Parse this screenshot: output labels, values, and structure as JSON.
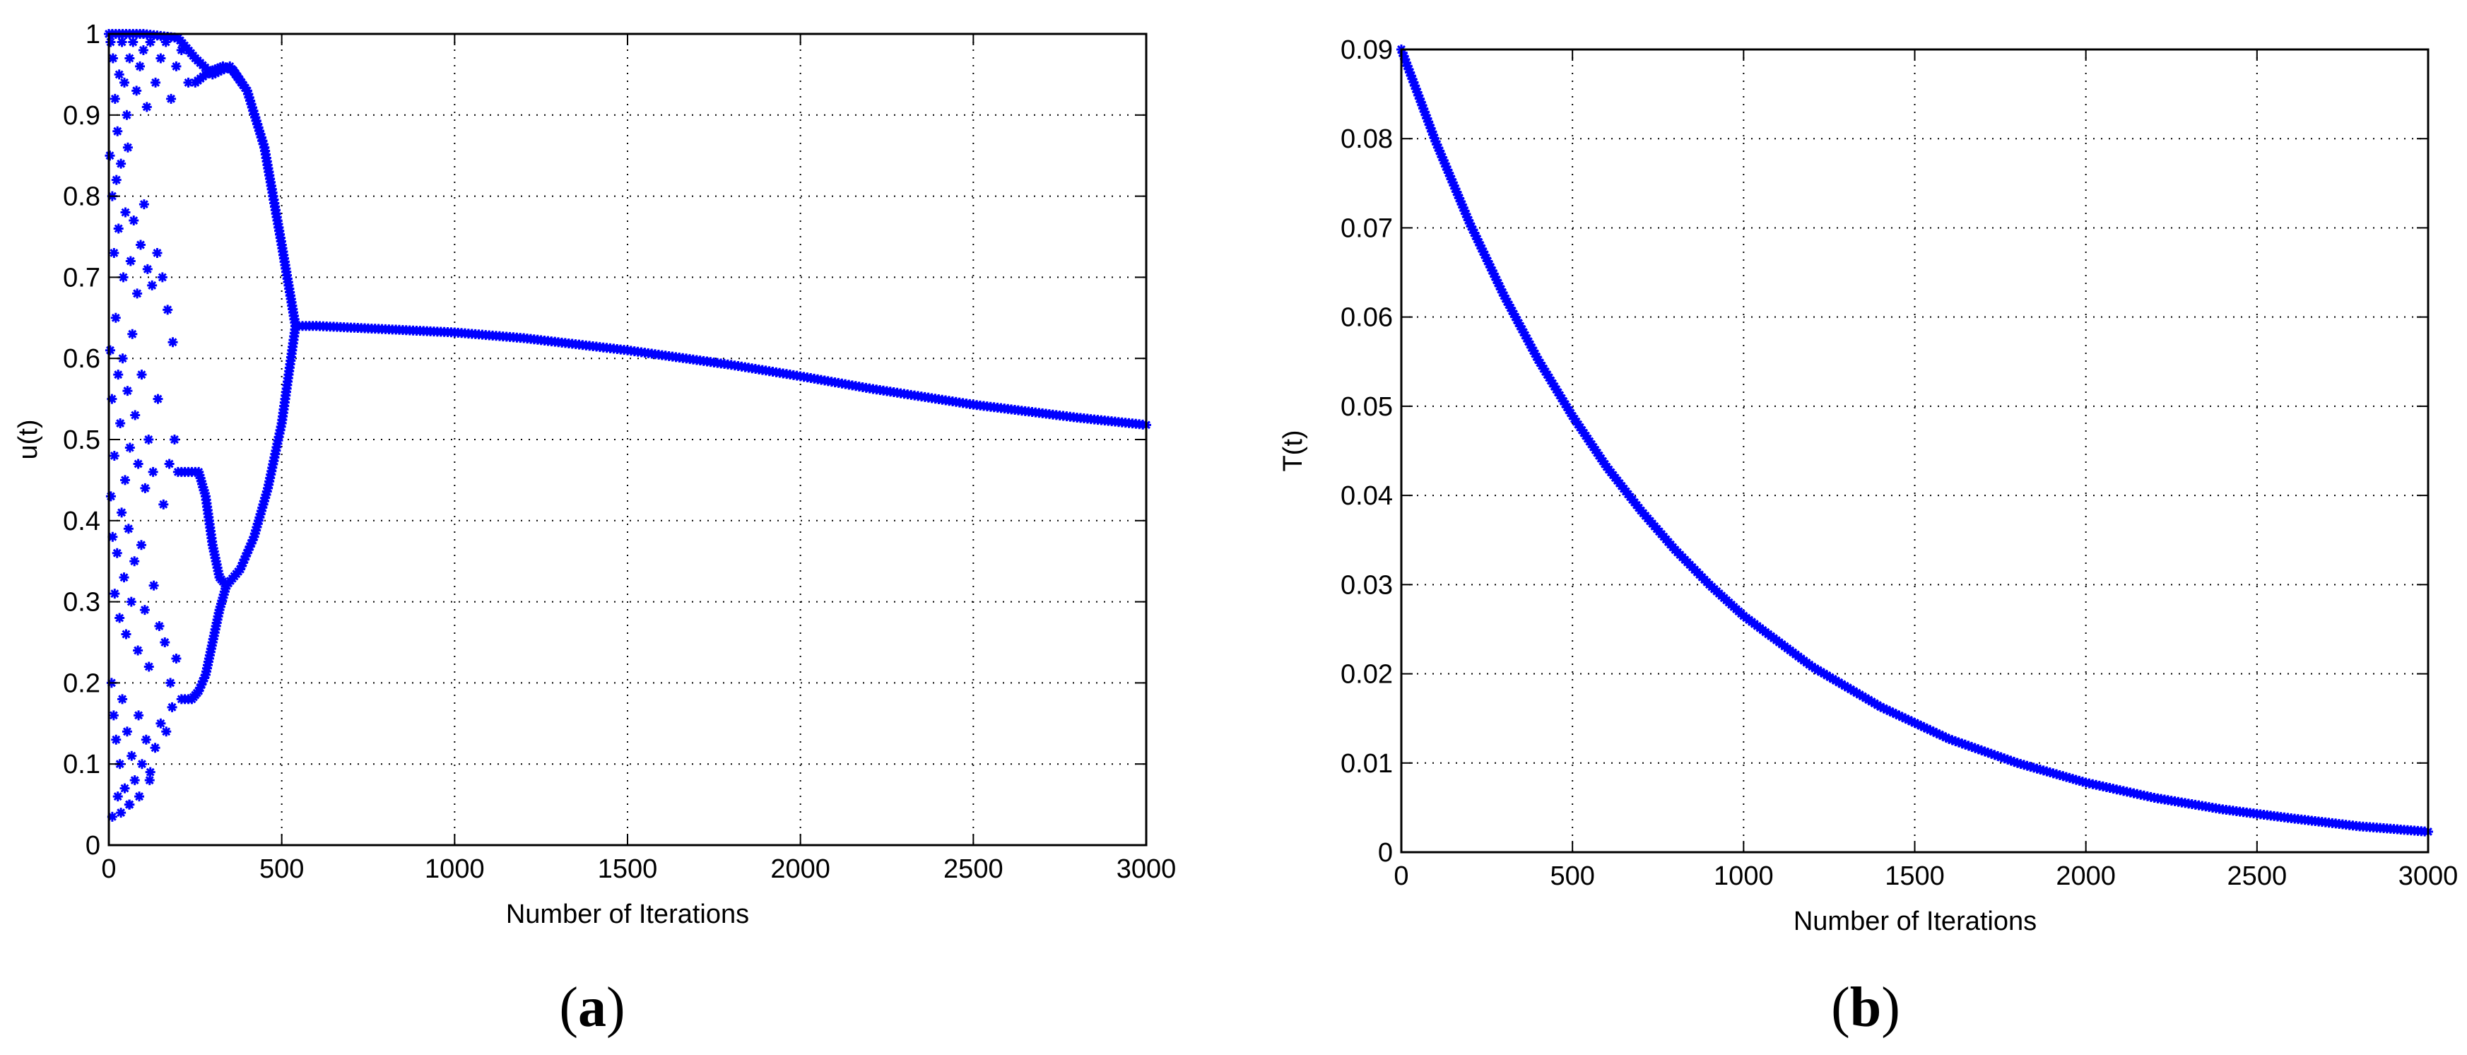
{
  "chart_data": [
    {
      "type": "scatter",
      "caption": {
        "open": "(",
        "letter": "a",
        "close": ")"
      },
      "title": "",
      "xlabel": "Number of Iterations",
      "ylabel": "u(t)",
      "xlim": [
        0,
        3000
      ],
      "ylim": [
        0,
        1
      ],
      "xticks": [
        0,
        500,
        1000,
        1500,
        2000,
        2500,
        3000
      ],
      "yticks": [
        0,
        0.1,
        0.2,
        0.3,
        0.4,
        0.5,
        0.6,
        0.7,
        0.8,
        0.9,
        1
      ],
      "grid": true,
      "marker": "*",
      "color": "#0000ff",
      "series": [
        {
          "x": [
            0,
            100,
            200,
            250,
            300,
            350,
            400,
            450,
            500,
            540,
            600,
            800,
            1000,
            1200,
            1500,
            1800,
            2000,
            2200,
            2500,
            2800,
            3000
          ],
          "y": [
            1.0,
            1.0,
            0.995,
            0.97,
            0.95,
            0.96,
            0.93,
            0.86,
            0.74,
            0.64,
            0.64,
            0.636,
            0.632,
            0.625,
            0.61,
            0.592,
            0.578,
            0.563,
            0.543,
            0.527,
            0.518
          ]
        },
        {
          "x": [
            250,
            280,
            300,
            330,
            360,
            400,
            450,
            500,
            540
          ],
          "y": [
            0.94,
            0.95,
            0.955,
            0.96,
            0.955,
            0.93,
            0.86,
            0.74,
            0.64
          ]
        },
        {
          "x": [
            200,
            230,
            260,
            280,
            300,
            320,
            340,
            380,
            420,
            460,
            500,
            540
          ],
          "y": [
            0.46,
            0.46,
            0.46,
            0.43,
            0.37,
            0.33,
            0.32,
            0.34,
            0.38,
            0.44,
            0.52,
            0.64
          ]
        },
        {
          "x": [
            210,
            240,
            260,
            280,
            300,
            320,
            340
          ],
          "y": [
            0.18,
            0.18,
            0.19,
            0.21,
            0.25,
            0.29,
            0.32
          ]
        }
      ],
      "scatter": [
        [
          5,
          0.99
        ],
        [
          12,
          0.97
        ],
        [
          18,
          0.92
        ],
        [
          25,
          0.88
        ],
        [
          30,
          0.95
        ],
        [
          38,
          0.99
        ],
        [
          45,
          0.94
        ],
        [
          52,
          0.9
        ],
        [
          60,
          0.97
        ],
        [
          70,
          0.99
        ],
        [
          80,
          0.93
        ],
        [
          90,
          0.96
        ],
        [
          100,
          0.98
        ],
        [
          110,
          0.91
        ],
        [
          120,
          0.99
        ],
        [
          135,
          0.94
        ],
        [
          150,
          0.97
        ],
        [
          165,
          0.99
        ],
        [
          180,
          0.92
        ],
        [
          195,
          0.96
        ],
        [
          210,
          0.98
        ],
        [
          230,
          0.94
        ],
        [
          3,
          0.85
        ],
        [
          10,
          0.8
        ],
        [
          15,
          0.73
        ],
        [
          22,
          0.82
        ],
        [
          28,
          0.76
        ],
        [
          35,
          0.84
        ],
        [
          42,
          0.7
        ],
        [
          48,
          0.78
        ],
        [
          55,
          0.86
        ],
        [
          63,
          0.72
        ],
        [
          72,
          0.77
        ],
        [
          82,
          0.68
        ],
        [
          92,
          0.74
        ],
        [
          102,
          0.79
        ],
        [
          112,
          0.71
        ],
        [
          125,
          0.69
        ],
        [
          140,
          0.73
        ],
        [
          155,
          0.7
        ],
        [
          170,
          0.66
        ],
        [
          185,
          0.62
        ],
        [
          4,
          0.61
        ],
        [
          9,
          0.55
        ],
        [
          16,
          0.48
        ],
        [
          20,
          0.65
        ],
        [
          27,
          0.58
        ],
        [
          33,
          0.52
        ],
        [
          40,
          0.6
        ],
        [
          47,
          0.45
        ],
        [
          54,
          0.56
        ],
        [
          61,
          0.49
        ],
        [
          68,
          0.63
        ],
        [
          76,
          0.53
        ],
        [
          85,
          0.47
        ],
        [
          95,
          0.58
        ],
        [
          105,
          0.44
        ],
        [
          115,
          0.5
        ],
        [
          128,
          0.46
        ],
        [
          142,
          0.55
        ],
        [
          158,
          0.42
        ],
        [
          175,
          0.47
        ],
        [
          190,
          0.5
        ],
        [
          6,
          0.43
        ],
        [
          11,
          0.38
        ],
        [
          17,
          0.31
        ],
        [
          24,
          0.36
        ],
        [
          31,
          0.28
        ],
        [
          37,
          0.41
        ],
        [
          44,
          0.33
        ],
        [
          50,
          0.26
        ],
        [
          57,
          0.39
        ],
        [
          65,
          0.3
        ],
        [
          74,
          0.35
        ],
        [
          84,
          0.24
        ],
        [
          94,
          0.37
        ],
        [
          104,
          0.29
        ],
        [
          116,
          0.22
        ],
        [
          130,
          0.32
        ],
        [
          146,
          0.27
        ],
        [
          162,
          0.25
        ],
        [
          178,
          0.2
        ],
        [
          195,
          0.23
        ],
        [
          8,
          0.2
        ],
        [
          14,
          0.16
        ],
        [
          21,
          0.13
        ],
        [
          26,
          0.06
        ],
        [
          32,
          0.1
        ],
        [
          39,
          0.18
        ],
        [
          46,
          0.07
        ],
        [
          53,
          0.14
        ],
        [
          59,
          0.05
        ],
        [
          66,
          0.11
        ],
        [
          75,
          0.08
        ],
        [
          86,
          0.16
        ],
        [
          96,
          0.1
        ],
        [
          108,
          0.13
        ],
        [
          120,
          0.09
        ],
        [
          134,
          0.12
        ],
        [
          150,
          0.15
        ],
        [
          166,
          0.14
        ],
        [
          183,
          0.17
        ],
        [
          10,
          0.035
        ],
        [
          35,
          0.04
        ],
        [
          60,
          0.05
        ],
        [
          88,
          0.06
        ],
        [
          118,
          0.08
        ]
      ]
    },
    {
      "type": "scatter",
      "caption": {
        "open": "(",
        "letter": "b",
        "close": ")"
      },
      "title": "",
      "xlabel": "Number of Iterations",
      "ylabel": "T(t)",
      "xlim": [
        0,
        3000
      ],
      "ylim": [
        0,
        0.09
      ],
      "xticks": [
        0,
        500,
        1000,
        1500,
        2000,
        2500,
        3000
      ],
      "yticks": [
        0,
        0.01,
        0.02,
        0.03,
        0.04,
        0.05,
        0.06,
        0.07,
        0.08,
        0.09
      ],
      "grid": true,
      "marker": "*",
      "color": "#0000ff",
      "series": [
        {
          "x": [
            0,
            100,
            200,
            300,
            400,
            500,
            600,
            700,
            800,
            900,
            1000,
            1200,
            1400,
            1600,
            1800,
            2000,
            2200,
            2400,
            2600,
            2800,
            3000
          ],
          "y": [
            0.09,
            0.0797,
            0.0705,
            0.0624,
            0.0552,
            0.0489,
            0.0432,
            0.0383,
            0.0339,
            0.03,
            0.0265,
            0.0208,
            0.0163,
            0.0127,
            0.01,
            0.0078,
            0.0061,
            0.0048,
            0.0038,
            0.0029,
            0.0023
          ]
        }
      ]
    }
  ]
}
